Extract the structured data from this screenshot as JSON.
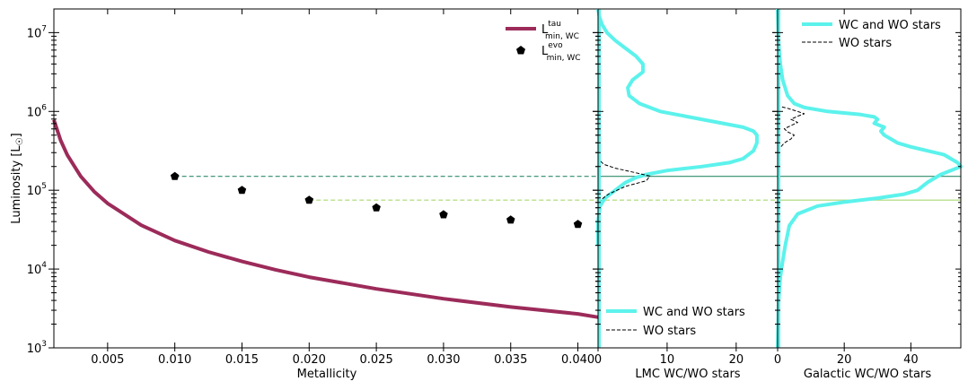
{
  "chart_data": [
    {
      "type": "line",
      "panel": "main",
      "xlabel": "Metallicity",
      "ylabel": "Luminosity [L",
      "ylabel_symbol": "☉",
      "ylabel_close": "]",
      "xlim": [
        0.001,
        0.0415
      ],
      "ylim_log10": [
        3,
        7.3
      ],
      "x_ticks": [
        0.005,
        0.01,
        0.015,
        0.02,
        0.025,
        0.03,
        0.035,
        0.04
      ],
      "x_tick_labels": [
        "0.005",
        "0.010",
        "0.015",
        "0.020",
        "0.025",
        "0.030",
        "0.035",
        "0.040"
      ],
      "y_ticks_log10": [
        3,
        4,
        5,
        6,
        7
      ],
      "y_tick_bases": [
        "10",
        "10",
        "10",
        "10",
        "10"
      ],
      "y_tick_exps": [
        "3",
        "4",
        "5",
        "6",
        "7"
      ],
      "series": [
        {
          "name": "L_min,WC^tau",
          "kind": "line",
          "color": "#9c2b5a",
          "x": [
            0.001,
            0.0015,
            0.002,
            0.003,
            0.004,
            0.005,
            0.0075,
            0.01,
            0.0125,
            0.015,
            0.0175,
            0.02,
            0.025,
            0.03,
            0.035,
            0.04,
            0.0415
          ],
          "y": [
            780000,
            430000,
            280000,
            150000,
            96000,
            68000,
            36000,
            23000,
            16500,
            12500,
            9800,
            7900,
            5600,
            4200,
            3300,
            2700,
            2450
          ]
        },
        {
          "name": "L_min,WC^evo",
          "kind": "scatter",
          "marker": "pentagon",
          "color": "#000000",
          "x": [
            0.01,
            0.015,
            0.02,
            0.025,
            0.03,
            0.035,
            0.04
          ],
          "y": [
            150000,
            100000,
            75000,
            60000,
            49000,
            42000,
            37000
          ]
        }
      ],
      "reference_lines": [
        {
          "name": "LMC threshold",
          "y": 150000,
          "x_from": 0.01,
          "color": "#2e8b6a"
        },
        {
          "name": "Galactic threshold",
          "y": 75000,
          "x_from": 0.02,
          "color": "#a8d870"
        }
      ],
      "legend": {
        "location": "top-right",
        "entries": [
          {
            "base": "L",
            "sup": "tau",
            "sub": "min, WC"
          },
          {
            "base": "L",
            "sup": "evo",
            "sub": "min, WC"
          }
        ]
      }
    },
    {
      "type": "line",
      "panel": "lmc",
      "orientation": "horizontal-distribution",
      "xlabel": "LMC WC/WO stars",
      "xlim": [
        0,
        26
      ],
      "x_ticks": [
        0,
        10,
        20
      ],
      "x_tick_labels": [
        "0",
        "10",
        "20"
      ],
      "shared_y": "log10 luminosity",
      "series": [
        {
          "name": "WC and WO stars",
          "color": "#5cf2ec",
          "y_log10": [
            4.3,
            4.6,
            4.8,
            4.9,
            5.0,
            5.1,
            5.16,
            5.2,
            5.25,
            5.3,
            5.35,
            5.4,
            5.5,
            5.6,
            5.7,
            5.75,
            5.8,
            5.85,
            5.9,
            5.95,
            6.0,
            6.1,
            6.2,
            6.3,
            6.4,
            6.5,
            6.6,
            6.7,
            6.8,
            6.9,
            7.0,
            7.1,
            7.2,
            7.3
          ],
          "counts": [
            0,
            0,
            0.3,
            1,
            2.5,
            4,
            5.5,
            7,
            10,
            15,
            19,
            21,
            22.5,
            23,
            23,
            22.5,
            21,
            18,
            15,
            12,
            9,
            6,
            4.5,
            4.3,
            5,
            6.5,
            6.5,
            5.5,
            4,
            2.5,
            1.3,
            0.6,
            0.2,
            0
          ]
        },
        {
          "name": "WO stars",
          "color": "#000000",
          "dashed": true,
          "y_log10": [
            4.85,
            4.95,
            5.05,
            5.12,
            5.18,
            5.22,
            5.28,
            5.33,
            5.4
          ],
          "counts": [
            0,
            1.5,
            4,
            7,
            7.5,
            5.5,
            2.5,
            0.8,
            0
          ]
        }
      ],
      "reference_lines": [
        {
          "y": 150000,
          "color": "#2e8b6a",
          "style": "solid"
        },
        {
          "y": 75000,
          "color": "#a8d870",
          "style": "dashed"
        }
      ],
      "legend": {
        "location": "bottom-right",
        "entries": [
          "WC and WO stars",
          "WO stars"
        ]
      }
    },
    {
      "type": "line",
      "panel": "galactic",
      "orientation": "horizontal-distribution",
      "xlabel": "Galactic WC/WO stars",
      "xlim": [
        0,
        55
      ],
      "x_ticks": [
        0,
        20,
        40
      ],
      "x_tick_labels": [
        "0",
        "20",
        "40"
      ],
      "shared_y": "log10 luminosity",
      "series": [
        {
          "name": "WC and WO stars",
          "color": "#5cf2ec",
          "y_log10": [
            3.0,
            3.6,
            3.9,
            4.1,
            4.3,
            4.55,
            4.7,
            4.8,
            4.85,
            4.9,
            4.95,
            5.0,
            5.1,
            5.2,
            5.3,
            5.35,
            5.4,
            5.45,
            5.5,
            5.55,
            5.6,
            5.65,
            5.7,
            5.75,
            5.8,
            5.85,
            5.9,
            5.93,
            5.96,
            6.0,
            6.05,
            6.1,
            6.2,
            6.4,
            6.6,
            6.8,
            7.0,
            7.3
          ],
          "counts": [
            0,
            0.3,
            0.8,
            1.5,
            2.3,
            3.5,
            6,
            12,
            20,
            30,
            38,
            42,
            45,
            49,
            55,
            54,
            52,
            50,
            45,
            40,
            36,
            34,
            32,
            31,
            32,
            29,
            30,
            29,
            25,
            15,
            8,
            5,
            3,
            1.5,
            0.8,
            0.4,
            0.2,
            0
          ]
        },
        {
          "name": "WO stars",
          "color": "#000000",
          "dashed": true,
          "y_log10": [
            5.5,
            5.6,
            5.65,
            5.7,
            5.74,
            5.78,
            5.82,
            5.86,
            5.9,
            5.94,
            5.97,
            6.0,
            6.04,
            6.07
          ],
          "counts": [
            0,
            2,
            4,
            5,
            3,
            2,
            4,
            6,
            4,
            6,
            8,
            6,
            3,
            0
          ]
        }
      ],
      "reference_lines": [
        {
          "y": 150000,
          "color": "#2e8b6a",
          "style": "solid"
        },
        {
          "y": 75000,
          "color": "#a8d870",
          "style": "solid"
        }
      ],
      "legend": {
        "location": "top-right",
        "entries": [
          "WC and WO stars",
          "WO stars"
        ]
      }
    }
  ]
}
